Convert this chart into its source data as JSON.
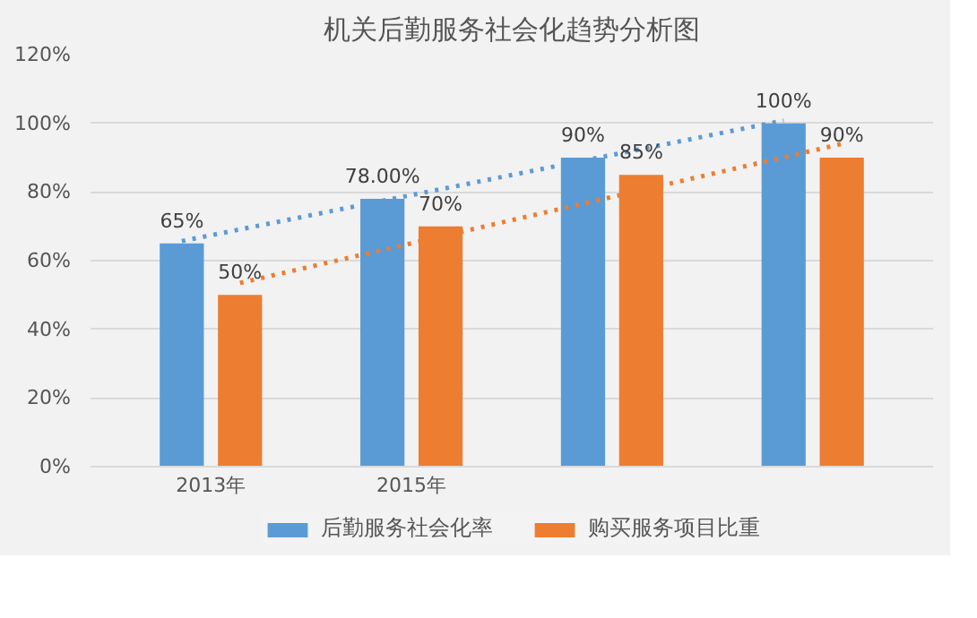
{
  "chart_data": {
    "type": "bar",
    "title": "机关后勤服务社会化趋势分析图",
    "categories": [
      "2013年",
      "2015年",
      null,
      null
    ],
    "series": [
      {
        "name": "后勤服务社会化率",
        "color": "#5b9bd5",
        "values": [
          65,
          78,
          90,
          100
        ],
        "value_labels": [
          "65%",
          "78.00%",
          "90%",
          "100%"
        ]
      },
      {
        "name": "购买服务项目比重",
        "color": "#ed7d31",
        "values": [
          50,
          70,
          85,
          90
        ],
        "value_labels": [
          "50%",
          "70%",
          "85%",
          "90%"
        ]
      },
      {
        "type": "line",
        "color": "#5b9bd5",
        "values": [
          65.7,
          77.4,
          89.1,
          100.8
        ],
        "line_style": "dotted"
      },
      {
        "type": "line",
        "color": "#ed7d31",
        "values": [
          53.5,
          67,
          80.5,
          94
        ],
        "line_style": "dotted"
      }
    ],
    "ylim": [
      0,
      120
    ],
    "yticks": [
      {
        "value": 0,
        "label": "0%"
      },
      {
        "value": 20,
        "label": "20%"
      },
      {
        "value": 40,
        "label": "40%"
      },
      {
        "value": 60,
        "label": "60%"
      },
      {
        "value": 80,
        "label": "80%"
      },
      {
        "value": 100,
        "label": "100%"
      },
      {
        "value": 120,
        "label": "120%"
      }
    ],
    "grid": "y",
    "legend": "bottom"
  }
}
